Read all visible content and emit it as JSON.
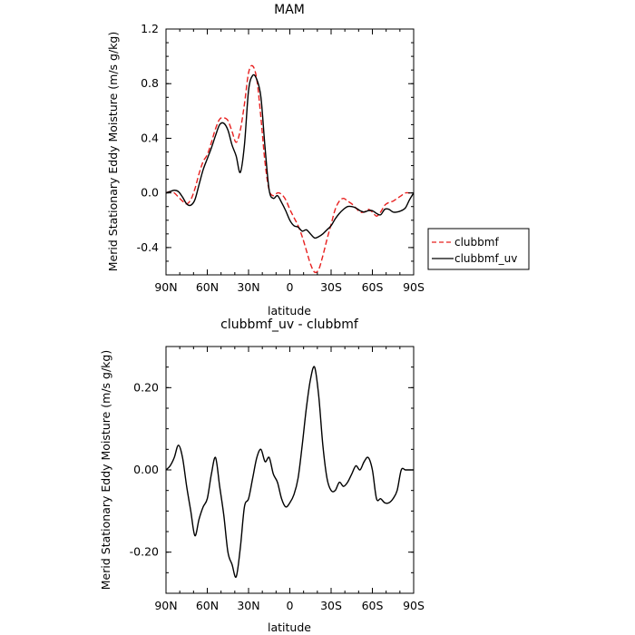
{
  "chart_data": [
    {
      "type": "line",
      "title": "MAM",
      "xlabel": "latitude",
      "ylabel": "Merid Stationary Eddy Moisture (m/s g/kg)",
      "xlim": [
        90,
        -90
      ],
      "ylim": [
        -0.6,
        1.2
      ],
      "x_ticks": [
        90,
        60,
        30,
        0,
        -30,
        -60,
        -90
      ],
      "x_tick_labels": [
        "90N",
        "60N",
        "30N",
        "0",
        "30S",
        "60S",
        "90S"
      ],
      "y_ticks": [
        -0.4,
        0.0,
        0.4,
        0.8,
        1.2
      ],
      "y_tick_labels": [
        "-0.4",
        "0.0",
        "0.4",
        "0.8",
        "1.2"
      ],
      "legend_position": "right, outside plot",
      "series": [
        {
          "name": "clubbmf",
          "color": "#e8201f",
          "dash": "dashed",
          "x": [
            90,
            87,
            84,
            81,
            78,
            75,
            72,
            69,
            66,
            63,
            60,
            57,
            54,
            51,
            48,
            45,
            42,
            39,
            36,
            33,
            30,
            27,
            24,
            21,
            18,
            15,
            12,
            9,
            6,
            3,
            0,
            -3,
            -6,
            -9,
            -12,
            -15,
            -18,
            -21,
            -24,
            -27,
            -30,
            -33,
            -36,
            -39,
            -42,
            -45,
            -48,
            -51,
            -54,
            -57,
            -60,
            -63,
            -66,
            -69,
            -72,
            -75,
            -78,
            -81,
            -84,
            -87,
            -90
          ],
          "y": [
            0.0,
            0.01,
            0.0,
            -0.03,
            -0.06,
            -0.08,
            -0.05,
            0.03,
            0.14,
            0.23,
            0.28,
            0.37,
            0.47,
            0.54,
            0.55,
            0.53,
            0.45,
            0.37,
            0.46,
            0.65,
            0.88,
            0.93,
            0.83,
            0.55,
            0.22,
            0.02,
            -0.02,
            0.0,
            -0.01,
            -0.05,
            -0.12,
            -0.18,
            -0.24,
            -0.32,
            -0.42,
            -0.52,
            -0.58,
            -0.56,
            -0.46,
            -0.34,
            -0.23,
            -0.12,
            -0.06,
            -0.04,
            -0.06,
            -0.08,
            -0.11,
            -0.14,
            -0.14,
            -0.12,
            -0.14,
            -0.17,
            -0.14,
            -0.09,
            -0.07,
            -0.06,
            -0.04,
            -0.02,
            0.0,
            0.0,
            0.0
          ]
        },
        {
          "name": "clubbmf_uv",
          "color": "#000000",
          "dash": "solid",
          "x": [
            90,
            87,
            84,
            81,
            78,
            75,
            72,
            69,
            66,
            63,
            60,
            57,
            54,
            51,
            48,
            45,
            42,
            39,
            36,
            33,
            30,
            27,
            24,
            21,
            18,
            15,
            12,
            9,
            6,
            3,
            0,
            -3,
            -6,
            -9,
            -12,
            -15,
            -18,
            -21,
            -24,
            -27,
            -30,
            -33,
            -36,
            -39,
            -42,
            -45,
            -48,
            -51,
            -54,
            -57,
            -60,
            -63,
            -66,
            -69,
            -72,
            -75,
            -78,
            -81,
            -84,
            -87,
            -90
          ],
          "y": [
            0.0,
            0.01,
            0.02,
            0.01,
            -0.03,
            -0.08,
            -0.09,
            -0.05,
            0.06,
            0.17,
            0.25,
            0.33,
            0.42,
            0.5,
            0.51,
            0.46,
            0.35,
            0.27,
            0.15,
            0.35,
            0.75,
            0.86,
            0.83,
            0.7,
            0.33,
            0.02,
            -0.04,
            -0.02,
            -0.07,
            -0.13,
            -0.2,
            -0.24,
            -0.25,
            -0.28,
            -0.27,
            -0.3,
            -0.33,
            -0.32,
            -0.3,
            -0.27,
            -0.24,
            -0.19,
            -0.15,
            -0.12,
            -0.1,
            -0.1,
            -0.11,
            -0.13,
            -0.14,
            -0.13,
            -0.13,
            -0.15,
            -0.16,
            -0.12,
            -0.12,
            -0.14,
            -0.14,
            -0.13,
            -0.11,
            -0.05,
            0.0
          ]
        }
      ]
    },
    {
      "type": "line",
      "title": "clubbmf_uv - clubbmf",
      "xlabel": "latitude",
      "ylabel": "Merid Stationary Eddy Moisture (m/s g/kg)",
      "xlim": [
        90,
        -90
      ],
      "ylim": [
        -0.3,
        0.3
      ],
      "x_ticks": [
        90,
        60,
        30,
        0,
        -30,
        -60,
        -90
      ],
      "x_tick_labels": [
        "90N",
        "60N",
        "30N",
        "0",
        "30S",
        "60S",
        "90S"
      ],
      "y_ticks": [
        -0.2,
        0.0,
        0.2
      ],
      "y_tick_labels": [
        "-0.20",
        "0.00",
        "0.20"
      ],
      "series": [
        {
          "color": "#000000",
          "dash": "solid",
          "x": [
            90,
            87,
            84,
            81,
            78,
            75,
            72,
            69,
            66,
            63,
            60,
            57,
            54,
            51,
            48,
            45,
            42,
            39,
            36,
            33,
            30,
            27,
            24,
            21,
            18,
            15,
            12,
            9,
            6,
            3,
            0,
            -3,
            -6,
            -9,
            -12,
            -15,
            -18,
            -21,
            -24,
            -27,
            -30,
            -33,
            -36,
            -39,
            -42,
            -45,
            -48,
            -51,
            -54,
            -57,
            -60,
            -63,
            -66,
            -69,
            -72,
            -75,
            -78,
            -81,
            -84,
            -87,
            -90
          ],
          "y": [
            0.0,
            0.01,
            0.03,
            0.06,
            0.03,
            -0.04,
            -0.1,
            -0.16,
            -0.12,
            -0.09,
            -0.07,
            -0.01,
            0.03,
            -0.04,
            -0.11,
            -0.2,
            -0.23,
            -0.26,
            -0.19,
            -0.09,
            -0.07,
            -0.02,
            0.03,
            0.05,
            0.02,
            0.03,
            -0.01,
            -0.03,
            -0.07,
            -0.09,
            -0.08,
            -0.06,
            -0.02,
            0.06,
            0.15,
            0.22,
            0.25,
            0.18,
            0.06,
            -0.02,
            -0.05,
            -0.05,
            -0.03,
            -0.04,
            -0.03,
            -0.01,
            0.01,
            0.0,
            0.02,
            0.03,
            0.0,
            -0.07,
            -0.07,
            -0.08,
            -0.08,
            -0.07,
            -0.05,
            0.0,
            0.0,
            0.0,
            0.0
          ]
        }
      ]
    }
  ]
}
